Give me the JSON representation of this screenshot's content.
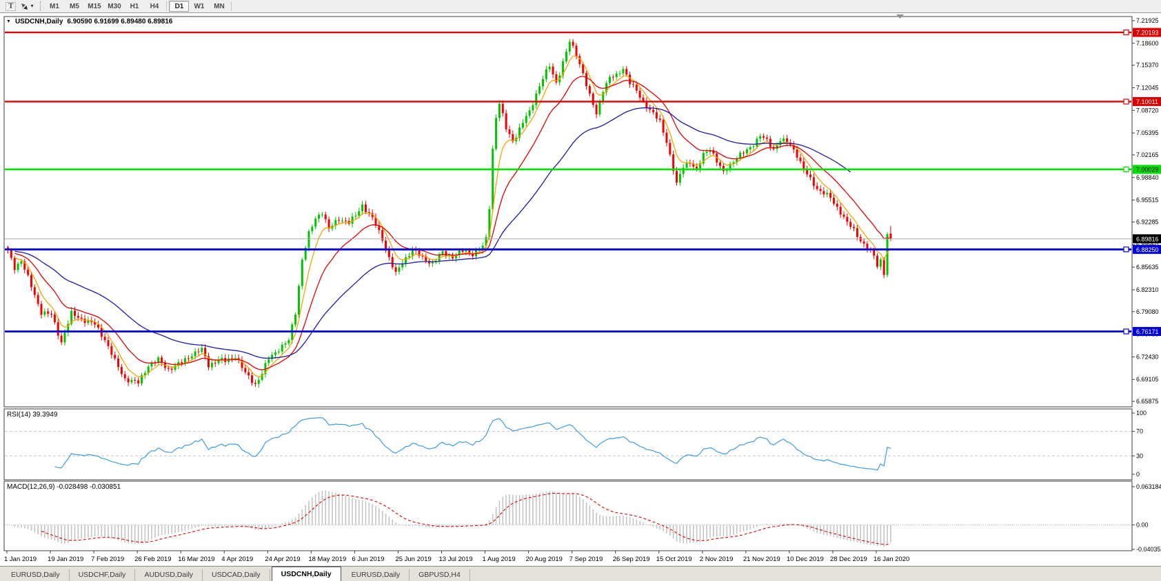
{
  "icons": {
    "symbol_triangle": "▼",
    "dropdown_caret": "▾"
  },
  "toolbar": {
    "text_tool_label": "T",
    "timeframes": [
      "M1",
      "M5",
      "M15",
      "M30",
      "H1",
      "H4",
      "D1",
      "W1",
      "MN"
    ],
    "active_timeframe": "D1"
  },
  "chart": {
    "title_symbol": "USDCNH,Daily",
    "title_ohlc": "6.90590 6.91699 6.89480 6.89816",
    "price_axis": {
      "ticks": [
        "7.21925",
        "7.18600",
        "7.15370",
        "7.12045",
        "7.08720",
        "7.05395",
        "7.02165",
        "6.98840",
        "6.95515",
        "6.92285",
        "6.88960",
        "6.85635",
        "6.82310",
        "6.79080",
        "6.75755",
        "6.72430",
        "6.69105",
        "6.65875"
      ],
      "badges": [
        {
          "label": "7.20193",
          "price": 7.20193,
          "bg": "#dd0000",
          "fg": "#ffffff"
        },
        {
          "label": "7.10011",
          "price": 7.10011,
          "bg": "#dd0000",
          "fg": "#ffffff"
        },
        {
          "label": "7.00029",
          "price": 7.00029,
          "bg": "#00dd00",
          "fg": "#000000"
        },
        {
          "label": "6.89816",
          "price": 6.89816,
          "bg": "#000000",
          "fg": "#ffffff"
        },
        {
          "label": "6.88250",
          "price": 6.8825,
          "bg": "#0000dd",
          "fg": "#ffffff"
        },
        {
          "label": "6.76171",
          "price": 6.76171,
          "bg": "#0000dd",
          "fg": "#ffffff"
        }
      ]
    },
    "levels": [
      {
        "price": 7.20193,
        "color": "#dd0000",
        "width": 2.4
      },
      {
        "price": 7.10011,
        "color": "#dd0000",
        "width": 2.4
      },
      {
        "price": 7.00029,
        "color": "#00e100",
        "width": 2.6
      },
      {
        "price": 6.8825,
        "color": "#0000e0",
        "width": 2.8
      },
      {
        "price": 6.76171,
        "color": "#0000e0",
        "width": 2.8
      }
    ],
    "current_price_line": {
      "price": 6.89816,
      "color": "#ababab"
    },
    "date_axis": [
      "1 Jan 2019",
      "19 Jan 2019",
      "7 Feb 2019",
      "26 Feb 2019",
      "16 Mar 2019",
      "4 Apr 2019",
      "24 Apr 2019",
      "18 May 2019",
      "6 Jun 2019",
      "25 Jun 2019",
      "13 Jul 2019",
      "1 Aug 2019",
      "20 Aug 2019",
      "7 Sep 2019",
      "26 Sep 2019",
      "15 Oct 2019",
      "2 Nov 2019",
      "21 Nov 2019",
      "10 Dec 2019",
      "28 Dec 2019",
      "16 Jan 2020"
    ]
  },
  "rsi": {
    "label": "RSI(14) 39.3949",
    "period": 14,
    "current": 39.3949,
    "axis": [
      "100",
      "70",
      "30",
      "0"
    ],
    "guide_levels": [
      70,
      30
    ],
    "color": "#3f9be0"
  },
  "macd": {
    "label": "MACD(12,26,9) -0.028498 -0.030851",
    "fast": 12,
    "slow": 26,
    "signal": 9,
    "current_macd": -0.028498,
    "current_signal": -0.030851,
    "axis": [
      "0.063184",
      "0.00",
      "-0.040355"
    ],
    "histogram_color": "#c4c4c4",
    "signal_color": "#e00000"
  },
  "tabs": [
    {
      "label": "EURUSD,Daily",
      "active": false
    },
    {
      "label": "USDCHF,Daily",
      "active": false
    },
    {
      "label": "AUDUSD,Daily",
      "active": false
    },
    {
      "label": "USDCAD,Daily",
      "active": false
    },
    {
      "label": "USDCNH,Daily",
      "active": true
    },
    {
      "label": "EURUSD,Daily",
      "active": false
    },
    {
      "label": "GBPUSD,H4",
      "active": false
    }
  ],
  "chart_data": {
    "type": "candlestick+indicators",
    "symbol": "USDCNH",
    "timeframe": "Daily",
    "bars": 265,
    "bars_per_date_label": 13,
    "x_range": [
      "1 Jan 2019",
      "16 Jan 2020"
    ],
    "y_range": [
      6.6547,
      7.2253
    ],
    "colors": {
      "up": "#00c400",
      "down": "#f40000"
    },
    "close_anchors": [
      [
        0,
        6.88
      ],
      [
        2,
        6.856
      ],
      [
        4,
        6.866
      ],
      [
        7,
        6.828
      ],
      [
        10,
        6.79
      ],
      [
        13,
        6.786
      ],
      [
        16,
        6.746
      ],
      [
        19,
        6.788
      ],
      [
        22,
        6.78
      ],
      [
        26,
        6.772
      ],
      [
        29,
        6.75
      ],
      [
        32,
        6.718
      ],
      [
        35,
        6.692
      ],
      [
        39,
        6.686
      ],
      [
        42,
        6.712
      ],
      [
        45,
        6.72
      ],
      [
        48,
        6.706
      ],
      [
        52,
        6.716
      ],
      [
        55,
        6.728
      ],
      [
        58,
        6.735
      ],
      [
        60,
        6.712
      ],
      [
        63,
        6.72
      ],
      [
        65,
        6.718
      ],
      [
        68,
        6.726
      ],
      [
        71,
        6.7
      ],
      [
        74,
        6.684
      ],
      [
        76,
        6.7
      ],
      [
        78,
        6.722
      ],
      [
        81,
        6.736
      ],
      [
        84,
        6.748
      ],
      [
        86,
        6.79
      ],
      [
        88,
        6.868
      ],
      [
        90,
        6.905
      ],
      [
        92,
        6.928
      ],
      [
        94,
        6.938
      ],
      [
        96,
        6.912
      ],
      [
        99,
        6.928
      ],
      [
        102,
        6.922
      ],
      [
        104,
        6.932
      ],
      [
        106,
        6.948
      ],
      [
        109,
        6.928
      ],
      [
        112,
        6.898
      ],
      [
        114,
        6.87
      ],
      [
        116,
        6.846
      ],
      [
        118,
        6.864
      ],
      [
        121,
        6.882
      ],
      [
        124,
        6.87
      ],
      [
        127,
        6.862
      ],
      [
        130,
        6.878
      ],
      [
        133,
        6.872
      ],
      [
        136,
        6.88
      ],
      [
        139,
        6.876
      ],
      [
        142,
        6.886
      ],
      [
        143,
        6.898
      ],
      [
        144,
        6.945
      ],
      [
        145,
        7.03
      ],
      [
        146,
        7.078
      ],
      [
        147,
        7.098
      ],
      [
        149,
        7.06
      ],
      [
        151,
        7.042
      ],
      [
        153,
        7.06
      ],
      [
        155,
        7.078
      ],
      [
        156,
        7.084
      ],
      [
        158,
        7.112
      ],
      [
        160,
        7.135
      ],
      [
        162,
        7.152
      ],
      [
        164,
        7.128
      ],
      [
        166,
        7.158
      ],
      [
        168,
        7.188
      ],
      [
        170,
        7.17
      ],
      [
        172,
        7.142
      ],
      [
        174,
        7.108
      ],
      [
        176,
        7.082
      ],
      [
        178,
        7.118
      ],
      [
        180,
        7.135
      ],
      [
        182,
        7.138
      ],
      [
        184,
        7.15
      ],
      [
        186,
        7.128
      ],
      [
        188,
        7.115
      ],
      [
        190,
        7.1
      ],
      [
        192,
        7.088
      ],
      [
        195,
        7.07
      ],
      [
        197,
        7.042
      ],
      [
        199,
        7.0
      ],
      [
        200,
        6.978
      ],
      [
        202,
        7.005
      ],
      [
        204,
        7.012
      ],
      [
        206,
        6.998
      ],
      [
        208,
        7.022
      ],
      [
        210,
        7.032
      ],
      [
        212,
        7.012
      ],
      [
        214,
        6.995
      ],
      [
        216,
        7.008
      ],
      [
        218,
        7.018
      ],
      [
        221,
        7.028
      ],
      [
        223,
        7.038
      ],
      [
        225,
        7.05
      ],
      [
        227,
        7.042
      ],
      [
        229,
        7.03
      ],
      [
        231,
        7.044
      ],
      [
        233,
        7.04
      ],
      [
        234,
        7.036
      ],
      [
        236,
        7.022
      ],
      [
        238,
        7.0
      ],
      [
        240,
        6.985
      ],
      [
        242,
        6.972
      ],
      [
        244,
        6.966
      ],
      [
        246,
        6.958
      ],
      [
        247,
        6.95
      ],
      [
        249,
        6.938
      ],
      [
        251,
        6.922
      ],
      [
        253,
        6.91
      ],
      [
        255,
        6.896
      ],
      [
        257,
        6.885
      ],
      [
        259,
        6.872
      ],
      [
        260,
        6.858
      ],
      [
        261,
        6.868
      ],
      [
        262,
        6.845
      ],
      [
        263,
        6.905
      ],
      [
        264,
        6.898
      ]
    ],
    "last_bar": {
      "open": 6.9059,
      "high": 6.91699,
      "low": 6.8948,
      "close": 6.89816
    },
    "moving_averages": [
      {
        "period": 6,
        "color": "#f5a300"
      },
      {
        "period": 16,
        "color": "#e00000"
      },
      {
        "period": 45,
        "color": "#1a1aae",
        "end_offset": 12
      }
    ]
  }
}
